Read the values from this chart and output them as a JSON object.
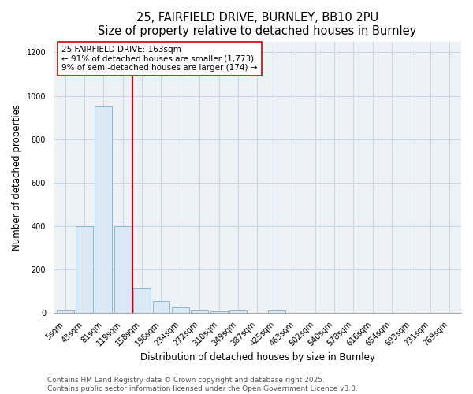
{
  "title1": "25, FAIRFIELD DRIVE, BURNLEY, BB10 2PU",
  "title2": "Size of property relative to detached houses in Burnley",
  "xlabel": "Distribution of detached houses by size in Burnley",
  "ylabel": "Number of detached properties",
  "categories": [
    "5sqm",
    "43sqm",
    "81sqm",
    "119sqm",
    "158sqm",
    "196sqm",
    "234sqm",
    "272sqm",
    "310sqm",
    "349sqm",
    "387sqm",
    "425sqm",
    "463sqm",
    "502sqm",
    "540sqm",
    "578sqm",
    "616sqm",
    "654sqm",
    "693sqm",
    "731sqm",
    "769sqm"
  ],
  "values": [
    10,
    400,
    950,
    400,
    110,
    55,
    25,
    10,
    5,
    10,
    0,
    10,
    0,
    0,
    0,
    0,
    0,
    0,
    0,
    0,
    0
  ],
  "bar_color": "#dbe8f5",
  "bar_edge_color": "#7bafd4",
  "red_line_x": 3.5,
  "red_line_color": "#cc0000",
  "annotation_text": "25 FAIRFIELD DRIVE: 163sqm\n← 91% of detached houses are smaller (1,773)\n9% of semi-detached houses are larger (174) →",
  "annotation_box_color": "white",
  "annotation_box_edge_color": "#cc0000",
  "ylim": [
    0,
    1250
  ],
  "yticks": [
    0,
    200,
    400,
    600,
    800,
    1000,
    1200
  ],
  "footer1": "Contains HM Land Registry data © Crown copyright and database right 2025.",
  "footer2": "Contains public sector information licensed under the Open Government Licence v3.0.",
  "bg_color": "#ffffff",
  "plot_bg_color": "#eef2f7",
  "title_fontsize": 10.5,
  "tick_fontsize": 7,
  "label_fontsize": 8.5,
  "footer_fontsize": 6.5,
  "annotation_fontsize": 7.5
}
